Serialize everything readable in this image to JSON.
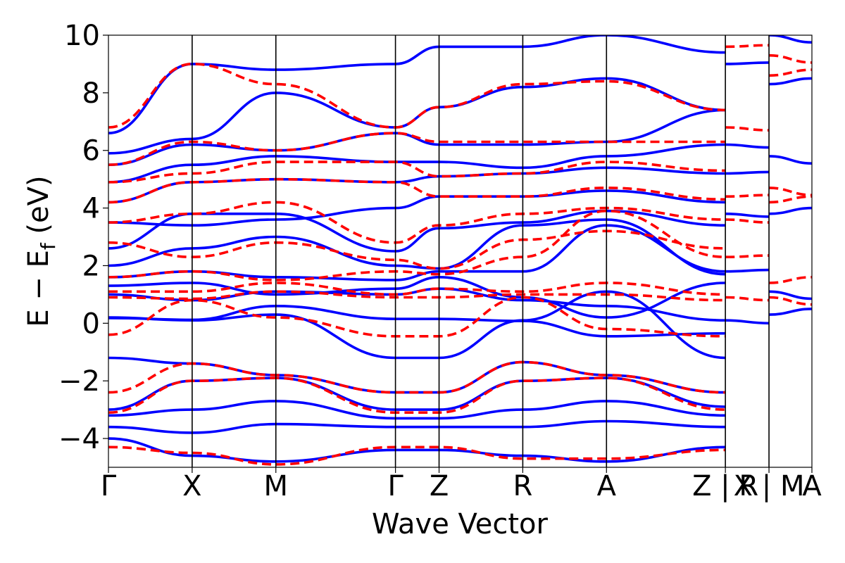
{
  "chart_data": {
    "type": "line",
    "xlabel": "Wave Vector",
    "ylabel": "E − E",
    "ylabel_subscript": "f",
    "ylabel_unit": "(eV)",
    "ylim": [
      -5,
      10
    ],
    "yticks": [
      -4,
      -2,
      0,
      2,
      4,
      6,
      8,
      10
    ],
    "ytick_labels": [
      "−4",
      "−2",
      "0",
      "2",
      "4",
      "6",
      "8",
      "10"
    ],
    "xlim": [
      0,
      1
    ],
    "kpoints": [
      {
        "label": "Γ",
        "x": 0.0
      },
      {
        "label": "X",
        "x": 0.119
      },
      {
        "label": "M",
        "x": 0.238
      },
      {
        "label": "Γ",
        "x": 0.408
      },
      {
        "label": "Z",
        "x": 0.47
      },
      {
        "label": "R",
        "x": 0.589
      },
      {
        "label": "A",
        "x": 0.708
      },
      {
        "label": "Z | R",
        "x": 0.877
      },
      {
        "label": "X | M",
        "x": 0.939
      },
      {
        "label": "A",
        "x": 1.0
      }
    ],
    "grid": false,
    "colors": {
      "series_a": "#0000ff",
      "series_b": "#ff0000"
    },
    "series": [
      {
        "style": "solid",
        "color": "#0000ff",
        "bands": [
          {
            "x": [
              0,
              0.119,
              0.238,
              0.408,
              0.47,
              0.589,
              0.708,
              0.877
            ],
            "y": [
              -1.2,
              -1.4,
              -1.8,
              -2.4,
              -2.4,
              -1.35,
              -1.8,
              -2.4
            ]
          },
          {
            "x": [
              0,
              0.119,
              0.238,
              0.408,
              0.47,
              0.589,
              0.708,
              0.877
            ],
            "y": [
              0.2,
              0.1,
              0.3,
              -1.2,
              -1.2,
              0.1,
              1.1,
              -1.2
            ]
          },
          {
            "x": [
              0,
              0.119,
              0.238,
              0.408,
              0.47,
              0.589,
              0.708,
              0.877
            ],
            "y": [
              0.18,
              0.12,
              0.6,
              0.15,
              0.15,
              0.08,
              -0.45,
              -0.35
            ]
          },
          {
            "x": [
              0,
              0.119,
              0.238,
              0.408,
              0.47,
              0.589,
              0.708,
              0.877
            ],
            "y": [
              1.0,
              0.8,
              1.1,
              1.0,
              1.2,
              0.8,
              0.6,
              0.1
            ]
          },
          {
            "x": [
              0,
              0.119,
              0.238,
              0.408,
              0.47,
              0.589,
              0.708,
              0.877
            ],
            "y": [
              1.3,
              1.4,
              1.0,
              1.2,
              1.6,
              0.9,
              0.2,
              1.4
            ]
          },
          {
            "x": [
              0,
              0.119,
              0.238,
              0.408,
              0.47,
              0.589,
              0.708,
              0.877
            ],
            "y": [
              1.6,
              1.8,
              1.6,
              1.5,
              1.8,
              1.8,
              3.4,
              1.8
            ]
          },
          {
            "x": [
              0,
              0.119,
              0.238,
              0.408,
              0.47,
              0.589,
              0.708,
              0.877
            ],
            "y": [
              2.0,
              2.6,
              3.0,
              2.0,
              1.9,
              3.4,
              3.6,
              1.7
            ]
          },
          {
            "x": [
              0,
              0.119,
              0.238,
              0.408,
              0.47,
              0.589,
              0.708,
              0.877
            ],
            "y": [
              2.6,
              3.8,
              3.8,
              2.5,
              3.3,
              3.5,
              3.9,
              3.4
            ]
          },
          {
            "x": [
              0,
              0.119,
              0.238,
              0.408,
              0.47,
              0.589,
              0.708,
              0.877
            ],
            "y": [
              3.5,
              3.4,
              3.6,
              4.0,
              4.4,
              4.4,
              4.6,
              4.2
            ]
          },
          {
            "x": [
              0,
              0.119,
              0.238,
              0.408,
              0.47,
              0.589,
              0.708,
              0.877
            ],
            "y": [
              4.2,
              4.9,
              5.0,
              4.9,
              5.1,
              5.2,
              5.4,
              5.2
            ]
          },
          {
            "x": [
              0,
              0.119,
              0.238,
              0.408,
              0.47,
              0.589,
              0.708,
              0.877
            ],
            "y": [
              4.9,
              5.5,
              5.8,
              5.6,
              5.6,
              5.4,
              5.8,
              6.2
            ]
          },
          {
            "x": [
              0,
              0.119,
              0.238,
              0.408,
              0.47,
              0.589,
              0.708,
              0.877
            ],
            "y": [
              5.5,
              6.2,
              6.0,
              6.6,
              6.2,
              6.2,
              6.3,
              7.4
            ]
          },
          {
            "x": [
              0,
              0.119,
              0.238,
              0.408,
              0.47,
              0.589,
              0.708,
              0.877
            ],
            "y": [
              5.9,
              6.4,
              8.0,
              6.8,
              7.5,
              8.2,
              8.5,
              7.4
            ]
          },
          {
            "x": [
              0,
              0.119,
              0.238,
              0.408,
              0.47,
              0.589,
              0.708,
              0.877
            ],
            "y": [
              6.6,
              9.0,
              8.8,
              9.0,
              9.6,
              9.6,
              10.0,
              9.4
            ]
          },
          {
            "x": [
              0,
              0.119,
              0.238,
              0.408,
              0.47,
              0.589,
              0.708,
              0.877
            ],
            "y": [
              -3.0,
              -2.0,
              -1.9,
              -3.0,
              -3.0,
              -2.0,
              -1.9,
              -2.9
            ]
          },
          {
            "x": [
              0,
              0.119,
              0.238,
              0.408,
              0.47,
              0.589,
              0.708,
              0.877
            ],
            "y": [
              -3.2,
              -3.0,
              -2.7,
              -3.3,
              -3.3,
              -3.0,
              -2.7,
              -3.2
            ]
          },
          {
            "x": [
              0,
              0.119,
              0.238,
              0.408,
              0.47,
              0.589,
              0.708,
              0.877
            ],
            "y": [
              -3.6,
              -3.8,
              -3.5,
              -3.6,
              -3.6,
              -3.6,
              -3.4,
              -3.6
            ]
          },
          {
            "x": [
              0,
              0.119,
              0.238,
              0.408,
              0.47,
              0.589,
              0.708,
              0.877
            ],
            "y": [
              -4.0,
              -4.6,
              -4.8,
              -4.4,
              -4.4,
              -4.6,
              -4.8,
              -4.3
            ]
          }
        ]
      },
      {
        "style": "dashed",
        "color": "#ff0000",
        "bands": [
          {
            "x": [
              0,
              0.119,
              0.238,
              0.408,
              0.47,
              0.589,
              0.708,
              0.877
            ],
            "y": [
              -0.4,
              0.8,
              0.2,
              -0.45,
              -0.45,
              0.9,
              -0.2,
              -0.45
            ]
          },
          {
            "x": [
              0,
              0.119,
              0.238,
              0.408,
              0.47,
              0.589,
              0.708,
              0.877
            ],
            "y": [
              0.9,
              0.85,
              1.1,
              0.9,
              0.9,
              1.0,
              1.0,
              0.8
            ]
          },
          {
            "x": [
              0,
              0.119,
              0.238,
              0.408,
              0.47,
              0.589,
              0.708,
              0.877
            ],
            "y": [
              1.1,
              1.1,
              1.4,
              1.0,
              1.2,
              1.1,
              1.4,
              1.0
            ]
          },
          {
            "x": [
              0,
              0.119,
              0.238,
              0.408,
              0.47,
              0.589,
              0.708,
              0.877
            ],
            "y": [
              1.6,
              1.8,
              1.5,
              1.8,
              1.7,
              2.3,
              3.9,
              2.3
            ]
          },
          {
            "x": [
              0,
              0.119,
              0.238,
              0.408,
              0.47,
              0.589,
              0.708,
              0.877
            ],
            "y": [
              2.8,
              2.3,
              2.8,
              2.2,
              1.9,
              2.9,
              3.2,
              2.6
            ]
          },
          {
            "x": [
              0,
              0.119,
              0.238,
              0.408,
              0.47,
              0.589,
              0.708,
              0.877
            ],
            "y": [
              3.5,
              3.8,
              4.2,
              2.8,
              3.4,
              3.8,
              4.0,
              3.6
            ]
          },
          {
            "x": [
              0,
              0.119,
              0.238,
              0.408,
              0.47,
              0.589,
              0.708,
              0.877
            ],
            "y": [
              4.2,
              4.9,
              5.0,
              4.9,
              4.4,
              4.4,
              4.7,
              4.3
            ]
          },
          {
            "x": [
              0,
              0.119,
              0.238,
              0.408,
              0.47,
              0.589,
              0.708,
              0.877
            ],
            "y": [
              4.9,
              5.2,
              5.6,
              5.6,
              5.1,
              5.2,
              5.6,
              5.3
            ]
          },
          {
            "x": [
              0,
              0.119,
              0.238,
              0.408,
              0.47,
              0.589,
              0.708,
              0.877
            ],
            "y": [
              5.5,
              6.3,
              6.0,
              6.6,
              6.3,
              6.3,
              6.3,
              6.3
            ]
          },
          {
            "x": [
              0,
              0.119,
              0.238,
              0.408,
              0.47,
              0.589,
              0.708,
              0.877
            ],
            "y": [
              6.8,
              9.0,
              8.3,
              6.8,
              7.5,
              8.3,
              8.4,
              7.4
            ]
          },
          {
            "x": [
              0,
              0.119,
              0.238,
              0.408,
              0.47,
              0.589,
              0.708,
              0.877
            ],
            "y": [
              -2.4,
              -1.4,
              -1.8,
              -2.4,
              -2.4,
              -1.35,
              -1.8,
              -2.4
            ]
          },
          {
            "x": [
              0,
              0.119,
              0.238,
              0.408,
              0.47,
              0.589,
              0.708,
              0.877
            ],
            "y": [
              -3.1,
              -2.0,
              -1.9,
              -3.1,
              -3.1,
              -2.0,
              -1.9,
              -3.0
            ]
          },
          {
            "x": [
              0,
              0.119,
              0.238,
              0.408,
              0.47,
              0.589,
              0.708,
              0.877
            ],
            "y": [
              -4.3,
              -4.5,
              -4.9,
              -4.3,
              -4.3,
              -4.7,
              -4.7,
              -4.4
            ]
          }
        ]
      }
    ]
  }
}
